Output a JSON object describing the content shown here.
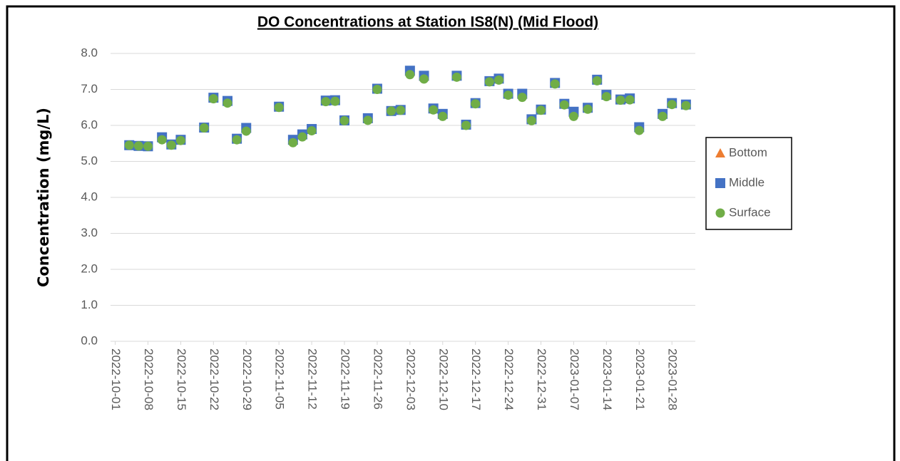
{
  "chart_data": {
    "type": "scatter",
    "title": "DO Concentrations at Station IS8(N) (Mid Flood)",
    "y_label": "Concentration (mg/L)",
    "x": [
      "2022-10-04",
      "2022-10-06",
      "2022-10-08",
      "2022-10-11",
      "2022-10-13",
      "2022-10-15",
      "2022-10-20",
      "2022-10-22",
      "2022-10-25",
      "2022-10-27",
      "2022-10-29",
      "2022-11-05",
      "2022-11-08",
      "2022-11-10",
      "2022-11-12",
      "2022-11-15",
      "2022-11-17",
      "2022-11-19",
      "2022-11-24",
      "2022-11-26",
      "2022-11-29",
      "2022-12-01",
      "2022-12-03",
      "2022-12-06",
      "2022-12-08",
      "2022-12-10",
      "2022-12-13",
      "2022-12-15",
      "2022-12-17",
      "2022-12-20",
      "2022-12-22",
      "2022-12-24",
      "2022-12-27",
      "2022-12-29",
      "2022-12-31",
      "2023-01-03",
      "2023-01-05",
      "2023-01-07",
      "2023-01-10",
      "2023-01-12",
      "2023-01-14",
      "2023-01-17",
      "2023-01-19",
      "2023-01-21",
      "2023-01-26",
      "2023-01-28",
      "2023-01-31"
    ],
    "series": [
      {
        "name": "Bottom",
        "color": "#ed7d31",
        "marker": "triangle",
        "values": [
          5.45,
          5.43,
          5.42,
          5.66,
          5.46,
          5.6,
          5.94,
          6.76,
          6.67,
          5.62,
          5.92,
          6.51,
          5.59,
          5.74,
          5.89,
          6.68,
          6.69,
          6.14,
          6.19,
          7.01,
          6.4,
          6.43,
          7.5,
          7.36,
          6.46,
          6.31,
          7.37,
          6.02,
          6.61,
          7.22,
          7.29,
          6.87,
          6.86,
          6.16,
          6.44,
          7.17,
          6.59,
          6.37,
          6.48,
          7.26,
          6.84,
          6.72,
          6.74,
          5.94,
          6.31,
          6.61,
          6.57
        ]
      },
      {
        "name": "Middle",
        "color": "#4472c4",
        "marker": "square",
        "values": [
          5.45,
          5.43,
          5.42,
          5.67,
          5.47,
          5.6,
          5.94,
          6.77,
          6.68,
          5.63,
          5.93,
          6.52,
          5.6,
          5.75,
          5.9,
          6.69,
          6.7,
          6.14,
          6.2,
          7.02,
          6.4,
          6.43,
          7.52,
          7.38,
          6.47,
          6.32,
          7.38,
          6.02,
          6.62,
          7.23,
          7.3,
          6.88,
          6.88,
          6.17,
          6.44,
          7.18,
          6.6,
          6.38,
          6.49,
          7.27,
          6.85,
          6.72,
          6.75,
          5.95,
          6.32,
          6.62,
          6.58
        ]
      },
      {
        "name": "Surface",
        "color": "#70ad47",
        "marker": "circle",
        "values": [
          5.45,
          5.43,
          5.42,
          5.6,
          5.45,
          5.58,
          5.93,
          6.74,
          6.62,
          5.6,
          5.84,
          6.5,
          5.52,
          5.68,
          5.85,
          6.66,
          6.67,
          6.13,
          6.14,
          7.0,
          6.4,
          6.42,
          7.41,
          7.29,
          6.43,
          6.25,
          7.34,
          6.0,
          6.6,
          7.21,
          7.26,
          6.84,
          6.78,
          6.13,
          6.42,
          7.15,
          6.57,
          6.25,
          6.45,
          7.24,
          6.8,
          6.7,
          6.71,
          5.86,
          6.25,
          6.58,
          6.55
        ]
      }
    ],
    "xlim": [
      "2022-09-30",
      "2023-02-02"
    ],
    "xticks": [
      "2022-10-01",
      "2022-10-08",
      "2022-10-15",
      "2022-10-22",
      "2022-10-29",
      "2022-11-05",
      "2022-11-12",
      "2022-11-19",
      "2022-11-26",
      "2022-12-03",
      "2022-12-10",
      "2022-12-17",
      "2022-12-24",
      "2022-12-31",
      "2023-01-07",
      "2023-01-14",
      "2023-01-21",
      "2023-01-28"
    ],
    "ylim": [
      0,
      8
    ],
    "yticks": [
      {
        "value": 0,
        "label": "0.0"
      },
      {
        "value": 1,
        "label": "1.0"
      },
      {
        "value": 2,
        "label": "2.0"
      },
      {
        "value": 3,
        "label": "3.0"
      },
      {
        "value": 4,
        "label": "4.0"
      },
      {
        "value": 5,
        "label": "5.0"
      },
      {
        "value": 6,
        "label": "6.0"
      },
      {
        "value": 7,
        "label": "7.0"
      },
      {
        "value": 8,
        "label": "8.0"
      }
    ],
    "grid": true,
    "legend": "right"
  }
}
